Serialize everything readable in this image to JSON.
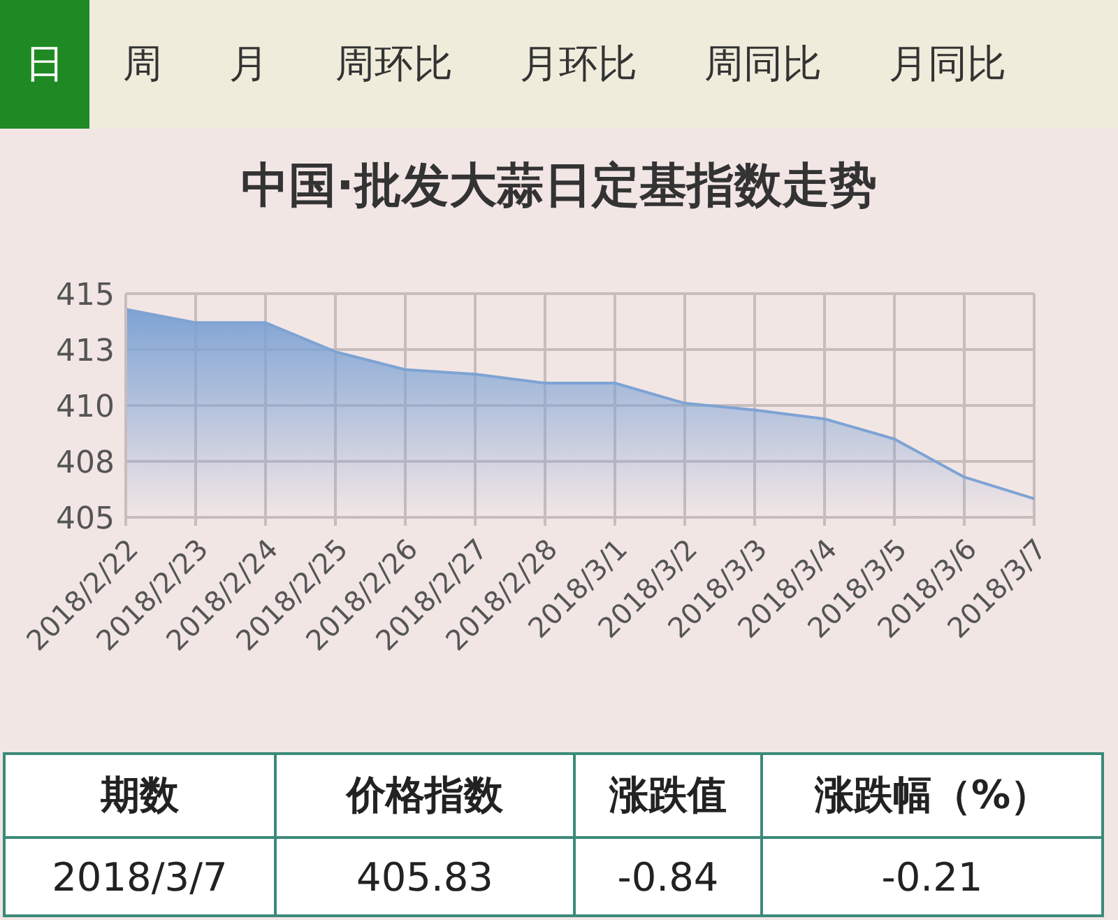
{
  "chart_data": {
    "type": "area",
    "title": "中国·批发大蒜日定基指数走势",
    "categories": [
      "2018/2/22",
      "2018/2/23",
      "2018/2/24",
      "2018/2/25",
      "2018/2/26",
      "2018/2/27",
      "2018/2/28",
      "2018/3/1",
      "2018/3/2",
      "2018/3/3",
      "2018/3/4",
      "2018/3/5",
      "2018/3/6",
      "2018/3/7"
    ],
    "series": [
      {
        "color": "#7ea3d4",
        "values": [
          414.3,
          413.7,
          413.7,
          412.4,
          411.6,
          411.4,
          411.0,
          411.0,
          410.1,
          409.8,
          409.4,
          408.5,
          406.8,
          405.83
        ]
      }
    ],
    "ylim": [
      405,
      415
    ],
    "yticks": [
      405,
      {
        "value": 407.5,
        "label": "408"
      },
      410,
      {
        "value": 412.5,
        "label": "413"
      },
      415
    ],
    "grid": true,
    "marker": "none",
    "annotations": [
      "日",
      "周",
      "月",
      "周环比",
      "月环比",
      "周同比",
      "月同比",
      "期数",
      "价格指数",
      "涨跌值",
      "涨跌幅（%）",
      "2018/3/7",
      "405.83",
      "-0.84",
      "-0.21"
    ]
  }
}
